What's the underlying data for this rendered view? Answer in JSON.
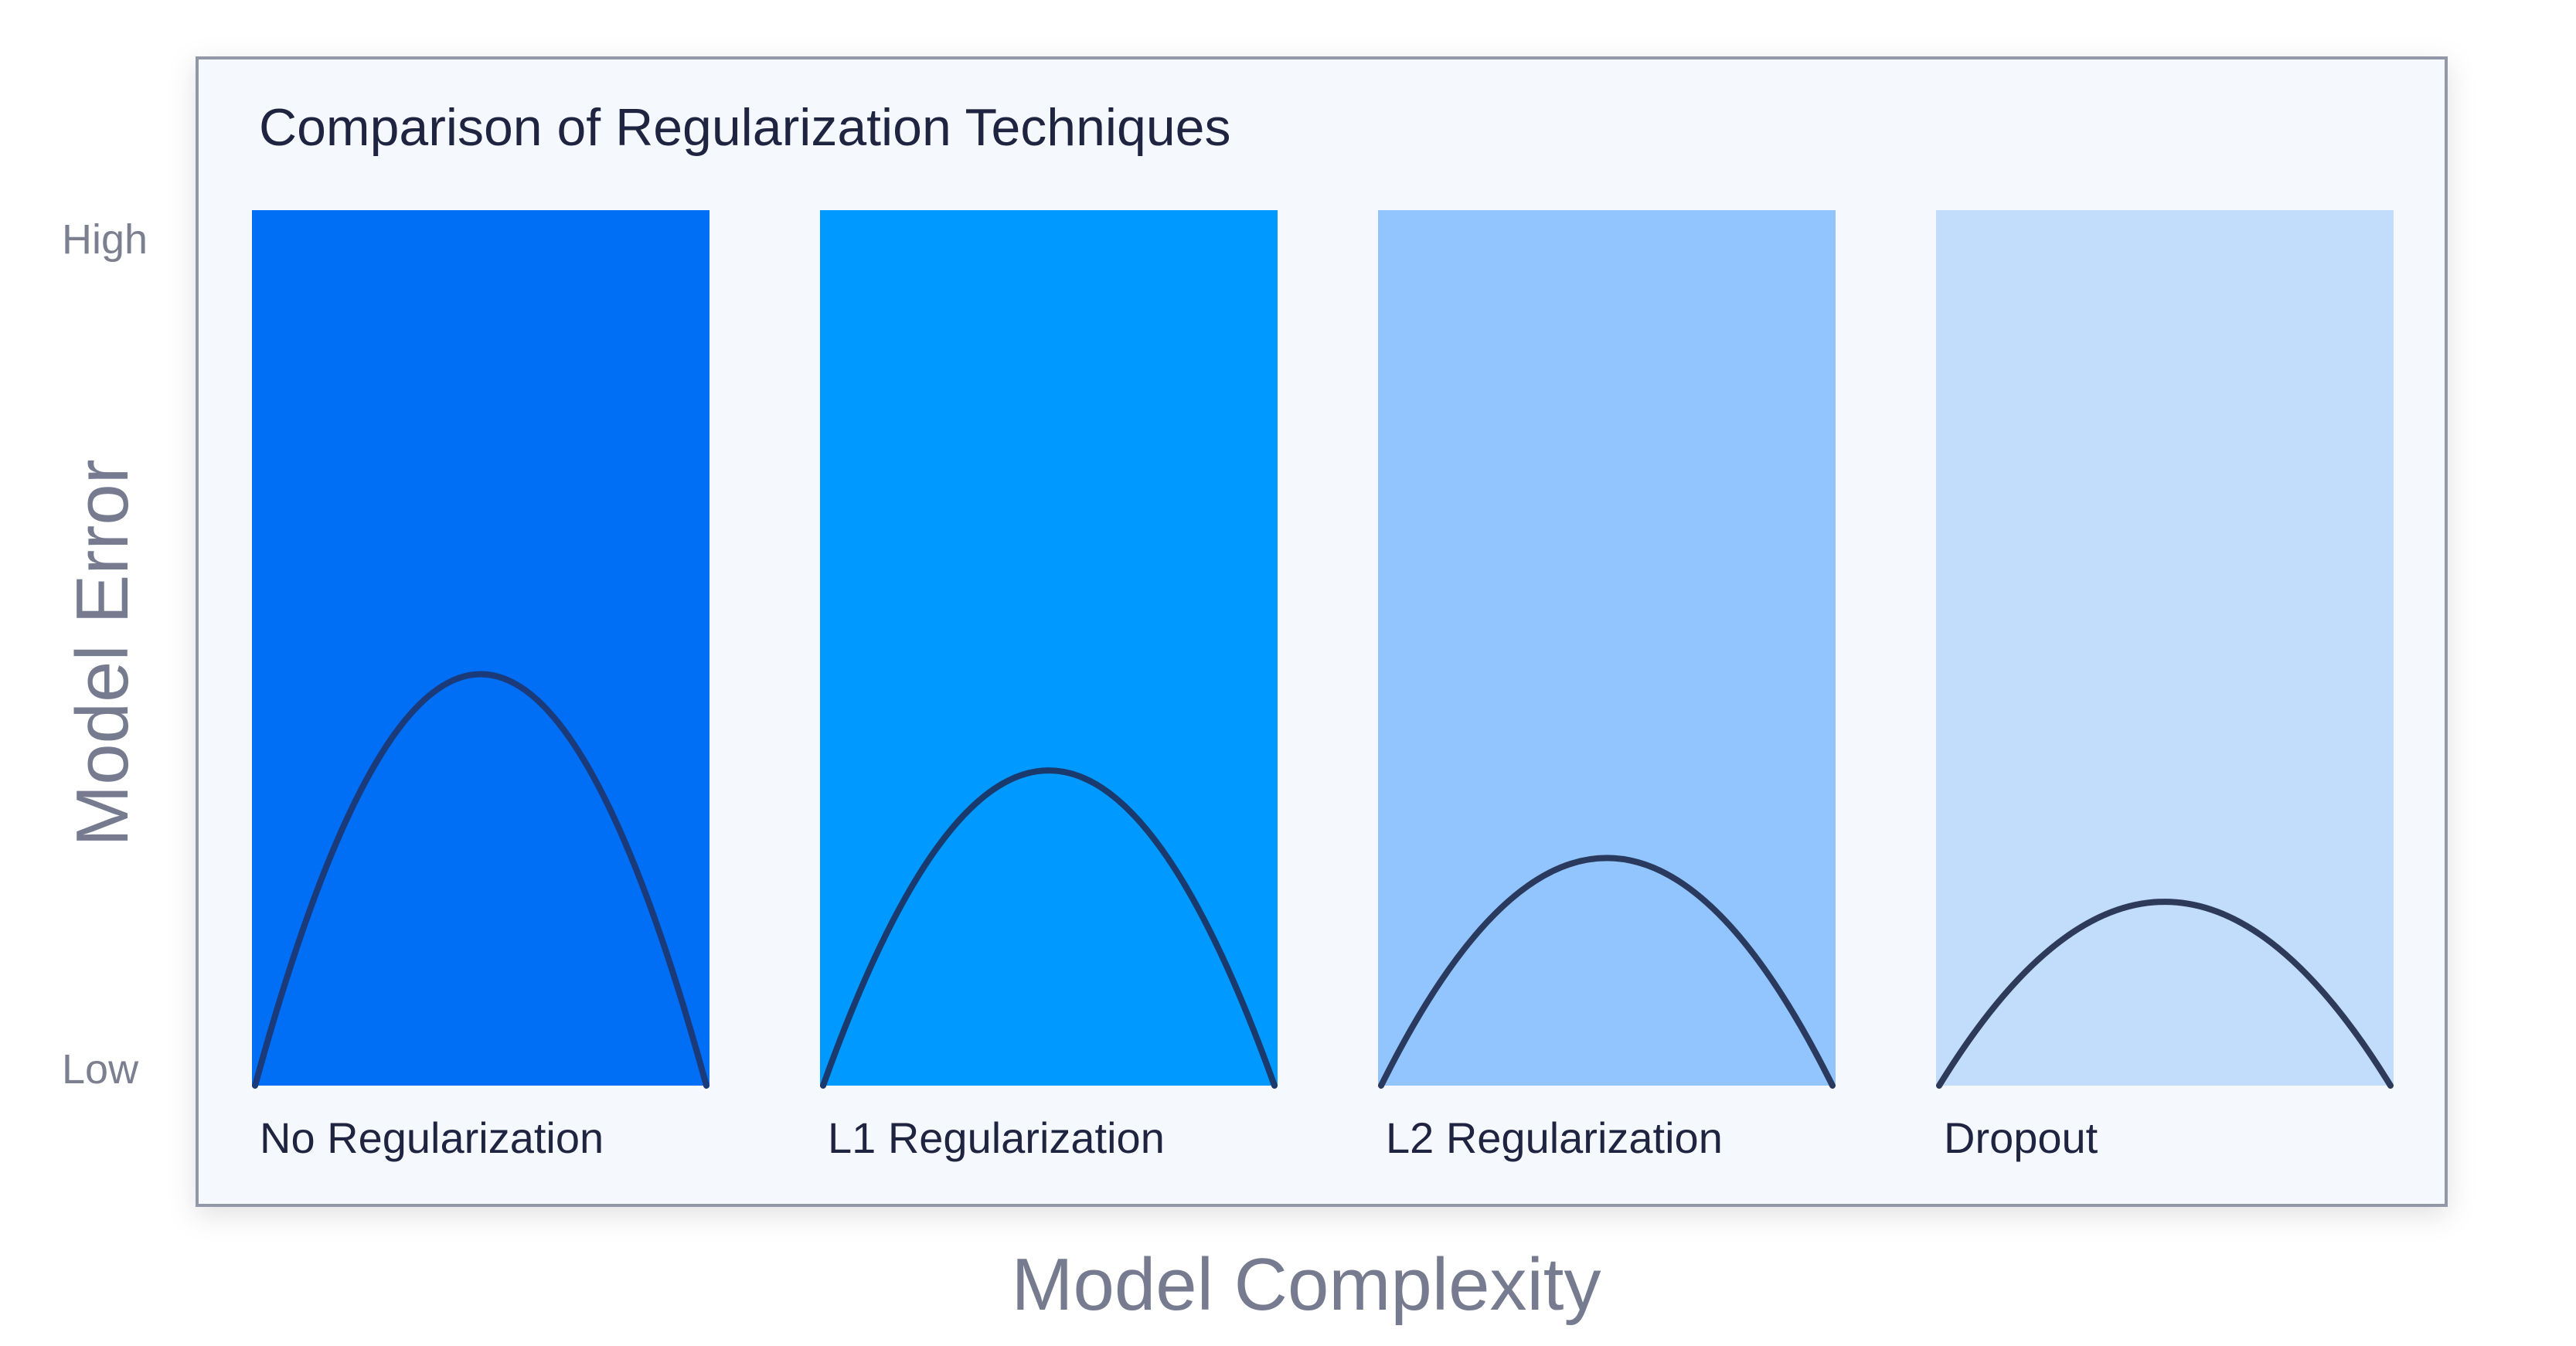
{
  "chart_data": {
    "type": "bar",
    "title": "Comparison of Regularization Techniques",
    "xlabel": "Model Complexity",
    "ylabel": "Model Error",
    "y_ticks": [
      "High",
      "Low"
    ],
    "grid": false,
    "legend": "none",
    "series": [
      {
        "category": "No Regularization",
        "peak_error": 0.47,
        "color": "#006ef5",
        "curve_color": "#1a3a7a"
      },
      {
        "category": "L1 Regularization",
        "peak_error": 0.36,
        "color": "#0099ff",
        "curve_color": "#1a3a6e"
      },
      {
        "category": "L2 Regularization",
        "peak_error": 0.26,
        "color": "#92c5fd",
        "curve_color": "#2a3a5e"
      },
      {
        "category": "Dropout",
        "peak_error": 0.21,
        "color": "#c1ddfb",
        "curve_color": "#2e3a5a"
      }
    ]
  },
  "colors": {
    "panel_background": "#f5f8fd",
    "panel_border": "#9398a8"
  }
}
